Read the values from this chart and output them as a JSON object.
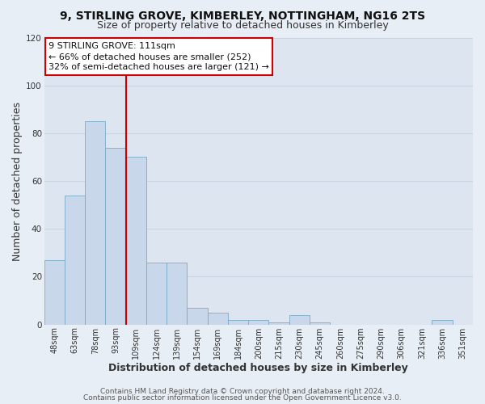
{
  "title": "9, STIRLING GROVE, KIMBERLEY, NOTTINGHAM, NG16 2TS",
  "subtitle": "Size of property relative to detached houses in Kimberley",
  "xlabel": "Distribution of detached houses by size in Kimberley",
  "ylabel": "Number of detached properties",
  "bar_color": "#c8d8ea",
  "bar_edge_color": "#7aaac8",
  "categories": [
    "48sqm",
    "63sqm",
    "78sqm",
    "93sqm",
    "109sqm",
    "124sqm",
    "139sqm",
    "154sqm",
    "169sqm",
    "184sqm",
    "200sqm",
    "215sqm",
    "230sqm",
    "245sqm",
    "260sqm",
    "275sqm",
    "290sqm",
    "306sqm",
    "321sqm",
    "336sqm",
    "351sqm"
  ],
  "values": [
    27,
    54,
    85,
    74,
    70,
    26,
    26,
    7,
    5,
    2,
    2,
    1,
    4,
    1,
    0,
    0,
    0,
    0,
    0,
    2,
    0
  ],
  "vline_x_idx": 4,
  "vline_color": "#cc0000",
  "annotation_text": "9 STIRLING GROVE: 111sqm\n← 66% of detached houses are smaller (252)\n32% of semi-detached houses are larger (121) →",
  "annotation_box_color": "#ffffff",
  "annotation_box_edge_color": "#cc0000",
  "ylim": [
    0,
    120
  ],
  "yticks": [
    0,
    20,
    40,
    60,
    80,
    100,
    120
  ],
  "footer1": "Contains HM Land Registry data © Crown copyright and database right 2024.",
  "footer2": "Contains public sector information licensed under the Open Government Licence v3.0.",
  "background_color": "#e8eef5",
  "plot_bg_color": "#dde6f0",
  "grid_color": "#c8d4e0",
  "title_fontsize": 10,
  "subtitle_fontsize": 9,
  "axis_label_fontsize": 9,
  "tick_fontsize": 7,
  "annotation_fontsize": 8,
  "footer_fontsize": 6.5
}
